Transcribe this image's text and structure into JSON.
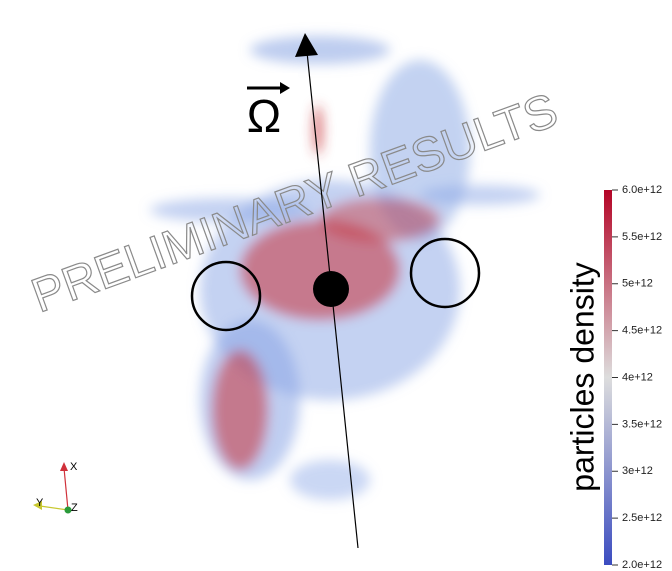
{
  "watermark": "PRELIMINARY RESULTS",
  "symbol": "Ω",
  "orientation_axes": {
    "x": "X",
    "y": "Y",
    "z": "Z"
  },
  "colorbar": {
    "title": "particles density",
    "range": [
      2000000000000,
      6000000000000
    ],
    "ticks": [
      {
        "value": 2000000000000,
        "label": "2.0e+12"
      },
      {
        "value": 2500000000000,
        "label": "2.5e+12"
      },
      {
        "value": 3000000000000,
        "label": "3e+12"
      },
      {
        "value": 3500000000000,
        "label": "3.5e+12"
      },
      {
        "value": 4000000000000,
        "label": "4e+12"
      },
      {
        "value": 4500000000000,
        "label": "4.5e+12"
      },
      {
        "value": 5000000000000,
        "label": "5e+12"
      },
      {
        "value": 5500000000000,
        "label": "5.5e+12"
      },
      {
        "value": 6000000000000,
        "label": "6.0e+12"
      }
    ]
  }
}
